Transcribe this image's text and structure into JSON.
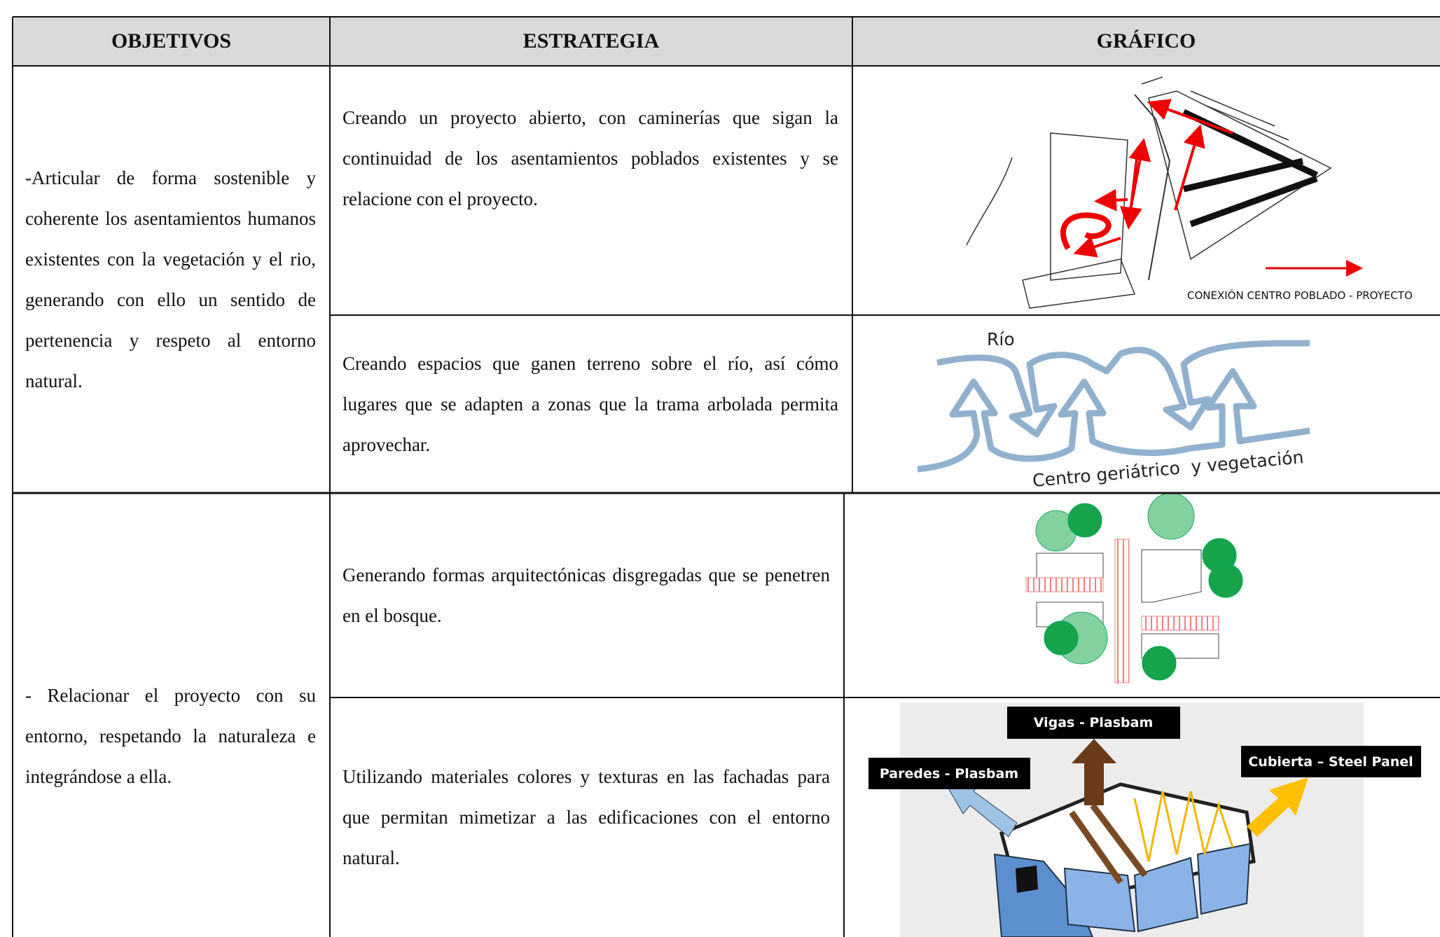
{
  "header": {
    "columns": [
      "OBJETIVOS",
      "ESTRATEGIA",
      "GRÁFICO"
    ]
  },
  "rows": [
    {
      "objective": "-Articular de forma sostenible y coherente los asentamientos humanos existentes con la vegetación y el rio, generando con ello un sentido de pertenencia y respeto al entorno natural.",
      "strategies": [
        {
          "text": "Creando un proyecto abierto, con caminerías que sigan la continuidad de los asentamientos poblados existentes y se relacione con el proyecto.",
          "graphic": {
            "labels": [
              "CONEXIÓN CENTRO POBLADO - PROYECTO"
            ]
          }
        },
        {
          "text": "Creando espacios que ganen terreno sobre el río, así cómo lugares que se adapten a zonas que la trama arbolada permita aprovechar.",
          "graphic": {
            "labels": [
              "Río",
              "Centro geriátrico  y vegetación"
            ]
          }
        }
      ]
    },
    {
      "objective": "- Relacionar el proyecto con su entorno, respetando la naturaleza e integrándose a ella.",
      "strategies": [
        {
          "text": "Generando formas arquitectónicas disgregadas que se penetren en el bosque."
        },
        {
          "text": "Utilizando materiales colores y texturas en las fachadas para que permitan mimetizar a las edificaciones con el entorno natural.",
          "graphic": {
            "labels": [
              "Vigas - Plasbam",
              "Paredes - Plasbam",
              "Cubierta – Steel Panel"
            ]
          }
        }
      ]
    }
  ]
}
